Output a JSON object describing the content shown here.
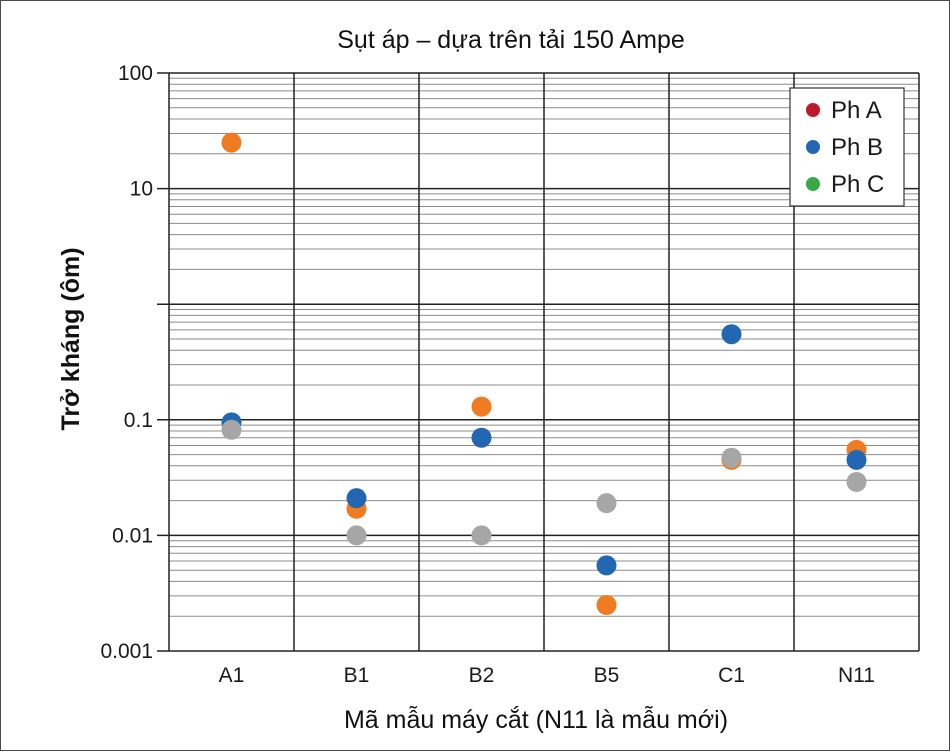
{
  "chart_data": {
    "type": "scatter",
    "title": "Sụt áp – dựa trên tải 150 Ampe",
    "xlabel": "Mã mẫu máy cắt (N11 là mẫu mới)",
    "ylabel": "Trở kháng (ôm)",
    "categories": [
      "A1",
      "B1",
      "B2",
      "B5",
      "C1",
      "N11"
    ],
    "y_scale": "log",
    "ylim": [
      0.001,
      100
    ],
    "y_ticks": [
      {
        "value": 100,
        "label": "100"
      },
      {
        "value": 10,
        "label": "10"
      },
      {
        "value": 0.1,
        "label": "0.1"
      },
      {
        "value": 0.01,
        "label": "0.01"
      },
      {
        "value": 0.001,
        "label": "0.001"
      }
    ],
    "grid": true,
    "legend_position": "top-right",
    "legend": [
      {
        "label": "Ph A",
        "color": "#c0192c"
      },
      {
        "label": "Ph B",
        "color": "#2367b3"
      },
      {
        "label": "Ph C",
        "color": "#3aa84a"
      }
    ],
    "series": [
      {
        "color": "#ef7b22",
        "values": [
          25,
          0.017,
          0.13,
          0.0025,
          0.045,
          0.055
        ]
      },
      {
        "color": "#2367b3",
        "values": [
          0.095,
          0.021,
          0.07,
          0.0055,
          0.55,
          0.045
        ]
      },
      {
        "color": "#a6a6a6",
        "values": [
          0.082,
          0.01,
          0.01,
          0.019,
          0.047,
          0.029
        ]
      }
    ]
  }
}
